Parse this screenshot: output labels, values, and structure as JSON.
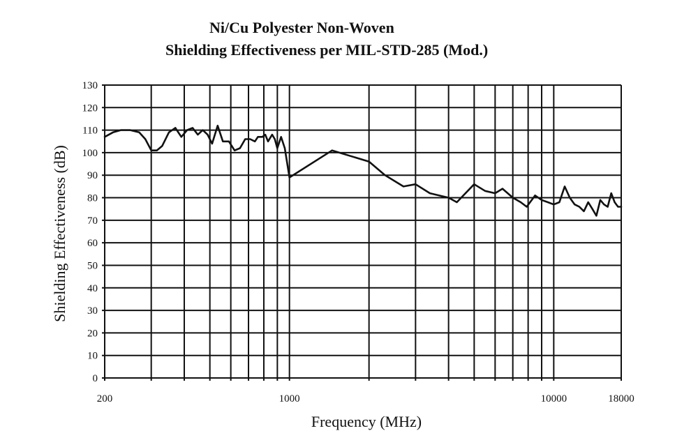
{
  "chart_data": {
    "type": "line",
    "title_line1": "Ni/Cu Polyester Non-Woven",
    "title_line2": "Shielding Effectiveness per MIL-STD-285 (Mod.)",
    "xlabel": "Frequency (MHz)",
    "ylabel": "Shielding Effectiveness (dB)",
    "x_scale": "log",
    "xlim": [
      200,
      18000
    ],
    "ylim": [
      0,
      130
    ],
    "y_ticks": [
      0,
      10,
      20,
      30,
      40,
      50,
      60,
      70,
      80,
      90,
      100,
      110,
      120,
      130
    ],
    "x_tick_labels": [
      {
        "value": 200,
        "label": "200"
      },
      {
        "value": 1000,
        "label": "1000"
      },
      {
        "value": 10000,
        "label": "10000"
      },
      {
        "value": 18000,
        "label": "18000"
      }
    ],
    "x_gridlines": [
      200,
      300,
      400,
      500,
      600,
      700,
      800,
      900,
      1000,
      2000,
      3000,
      4000,
      5000,
      6000,
      7000,
      8000,
      9000,
      10000,
      18000
    ],
    "grid": true,
    "series": [
      {
        "color": "#111111",
        "x": [
          200,
          215,
          230,
          250,
          270,
          285,
          300,
          315,
          330,
          350,
          370,
          390,
          410,
          430,
          450,
          470,
          490,
          510,
          535,
          560,
          590,
          620,
          650,
          680,
          710,
          740,
          760,
          790,
          810,
          830,
          860,
          880,
          900,
          930,
          960,
          1000,
          1450,
          2000,
          2300,
          2700,
          3000,
          3400,
          4000,
          4300,
          5000,
          5500,
          6000,
          6400,
          7000,
          7500,
          7900,
          8500,
          9000,
          9500,
          10000,
          10500,
          11000,
          11500,
          12000,
          12500,
          13000,
          13500,
          14000,
          14500,
          15000,
          15500,
          16000,
          16500,
          17000,
          17500,
          18000
        ],
        "y": [
          107,
          109,
          110,
          110,
          109,
          106,
          101,
          101,
          103,
          109,
          111,
          107,
          110,
          111,
          108,
          110,
          108,
          104,
          112,
          105,
          105,
          101,
          102,
          106,
          106,
          105,
          107,
          107,
          108,
          105,
          108,
          106,
          102,
          107,
          102,
          89,
          101,
          96,
          90,
          85,
          86,
          82,
          80,
          78,
          86,
          83,
          82,
          84,
          80,
          78,
          76,
          81,
          79,
          78,
          77,
          78,
          85,
          80,
          77,
          76,
          74,
          78,
          75,
          72,
          79,
          77,
          76,
          82,
          78,
          76,
          76
        ]
      }
    ]
  }
}
